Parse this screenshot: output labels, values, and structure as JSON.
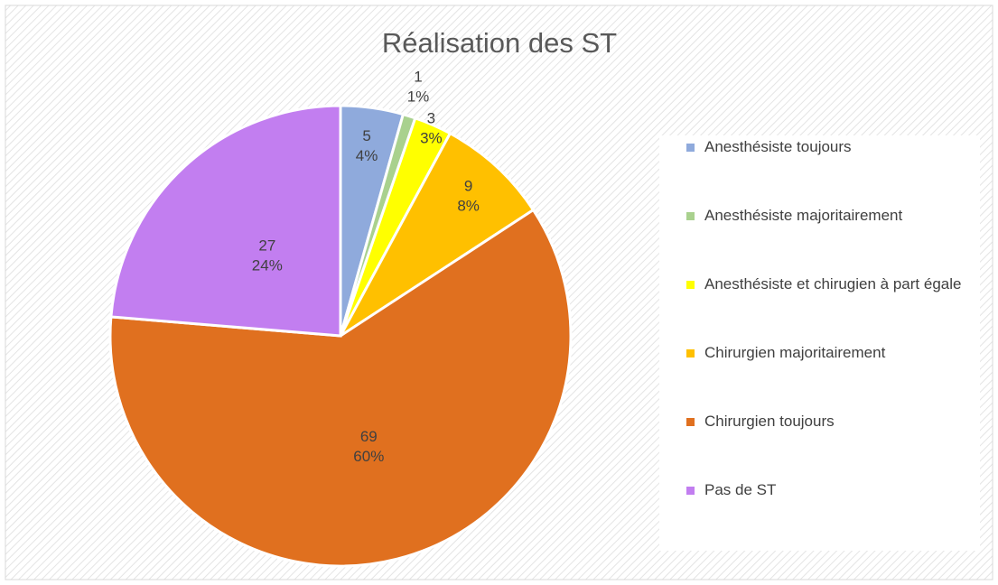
{
  "chart_data": {
    "type": "pie",
    "title": "Réalisation des ST",
    "categories": [
      "Anesthésiste toujours",
      "Anesthésiste majoritairement",
      "Anesthésiste et chirugien à part égale",
      "Chirurgien majoritairement",
      "Chirurgien toujours",
      "Pas de ST"
    ],
    "values": [
      5,
      1,
      3,
      9,
      69,
      27
    ],
    "percent_labels": [
      "4%",
      "1%",
      "3%",
      "8%",
      "60%",
      "24%"
    ],
    "colors": [
      "#8faadc",
      "#a9d18e",
      "#ffff00",
      "#ffc000",
      "#e0701f",
      "#c27ef0"
    ],
    "legend": "right"
  }
}
